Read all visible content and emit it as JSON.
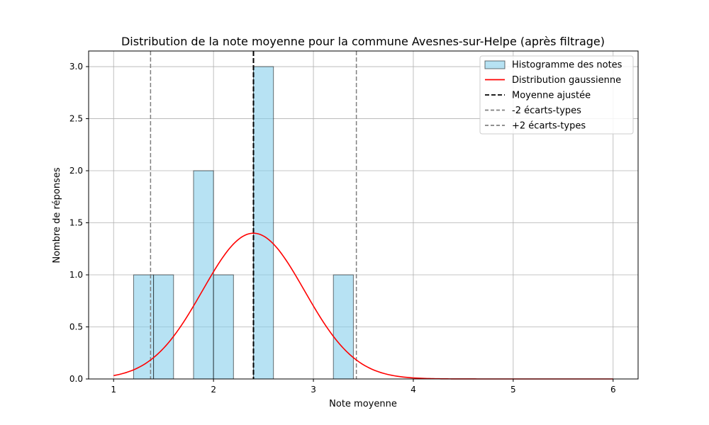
{
  "chart_data": {
    "type": "bar",
    "title": "Distribution de la note moyenne pour la commune Avesnes-sur-Helpe (après filtrage)",
    "xlabel": "Note moyenne",
    "ylabel": "Nombre de réponses",
    "xlim": [
      0.75,
      6.25
    ],
    "ylim": [
      0,
      3.15
    ],
    "xticks": [
      1,
      2,
      3,
      4,
      5,
      6
    ],
    "yticks": [
      0.0,
      0.5,
      1.0,
      1.5,
      2.0,
      2.5,
      3.0
    ],
    "xtick_labels": [
      "1",
      "2",
      "3",
      "4",
      "5",
      "6"
    ],
    "ytick_labels": [
      "0.0",
      "0.5",
      "1.0",
      "1.5",
      "2.0",
      "2.5",
      "3.0"
    ],
    "grid": true,
    "legend_position": "top-right",
    "histogram": {
      "name": "Histogramme des notes",
      "color": "#87ceeb",
      "bins": [
        {
          "x0": 1.2,
          "x1": 1.4,
          "count": 1
        },
        {
          "x0": 1.4,
          "x1": 1.6,
          "count": 1
        },
        {
          "x0": 1.8,
          "x1": 2.0,
          "count": 2
        },
        {
          "x0": 2.0,
          "x1": 2.2,
          "count": 1
        },
        {
          "x0": 2.4,
          "x1": 2.6,
          "count": 3
        },
        {
          "x0": 3.2,
          "x1": 3.4,
          "count": 1
        }
      ]
    },
    "gaussian": {
      "name": "Distribution gaussienne",
      "color": "#ff0000",
      "mean": 2.4,
      "std": 0.51,
      "peak": 1.4,
      "x_range": [
        1,
        6
      ]
    },
    "mean_line": {
      "name": "Moyenne ajustée",
      "x": 2.4,
      "color": "#000000"
    },
    "minus_2sd_line": {
      "name": "-2 écarts-types",
      "x": 1.37,
      "color": "#808080"
    },
    "plus_2sd_line": {
      "name": "+2 écarts-types",
      "x": 3.43,
      "color": "#808080"
    }
  }
}
